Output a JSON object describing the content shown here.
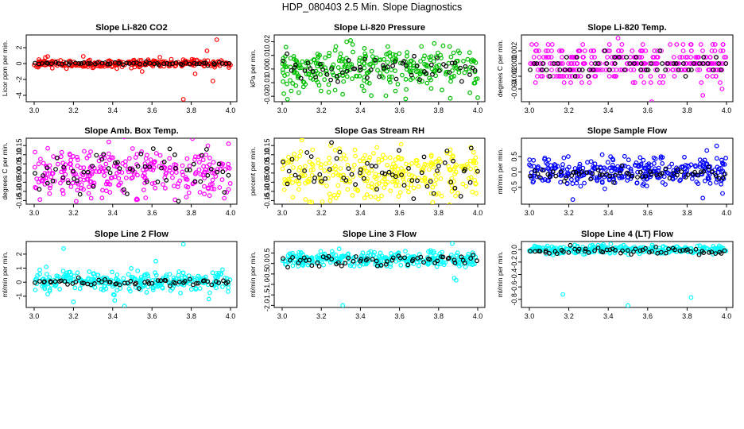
{
  "figure_title": "HDP_080403  2.5 Min. Slope Diagnostics",
  "chart_data": [
    {
      "type": "scatter",
      "title": "Slope Li-820 CO2",
      "ylabel": "Licor ppm per min.",
      "color": "#ff0000",
      "xlim": [
        3.0,
        4.0
      ],
      "ylim": [
        -4.8,
        3.6
      ],
      "xticks": [
        3.0,
        3.2,
        3.4,
        3.6,
        3.8,
        4.0
      ],
      "xtick_labels": [
        "3.0",
        "3.2",
        "3.4",
        "3.6",
        "3.8",
        "4.0"
      ],
      "yticks": [
        -4,
        -2,
        0,
        2
      ],
      "ytick_labels": [
        "-4",
        "-2",
        "0",
        "2"
      ],
      "cloud": {
        "center": 0.0,
        "spread": 0.25,
        "count": 280,
        "seed": 11
      },
      "outliers": {
        "x": [
          3.76,
          3.93,
          3.82,
          3.88,
          3.55,
          3.91,
          3.64,
          3.25
        ],
        "y": [
          -4.5,
          3.0,
          -1.3,
          1.6,
          -1.0,
          -2.2,
          0.8,
          0.9
        ]
      },
      "black": {
        "center": 0.0,
        "spread": 0.08,
        "count": 60,
        "seed": 21
      }
    },
    {
      "type": "scatter",
      "title": "Slope Li-820 Pressure",
      "ylabel": "kPa per min.",
      "color": "#00c000",
      "xlim": [
        3.0,
        4.0
      ],
      "ylim": [
        -0.024,
        0.025
      ],
      "xticks": [
        3.0,
        3.2,
        3.4,
        3.6,
        3.8,
        4.0
      ],
      "xtick_labels": [
        "3.0",
        "3.2",
        "3.4",
        "3.6",
        "3.8",
        "4.0"
      ],
      "yticks": [
        -0.02,
        -0.01,
        0.0,
        0.01,
        0.02
      ],
      "ytick_labels": [
        "-0.02",
        "-0.01",
        "0.00",
        "0.01",
        "0.02"
      ],
      "cloud": {
        "center": 0.0,
        "spread": 0.0085,
        "count": 300,
        "seed": 12
      },
      "outliers": {
        "x": [
          3.35,
          3.33,
          4.0,
          3.36
        ],
        "y": [
          0.021,
          0.02,
          -0.021,
          0.018
        ]
      },
      "black": {
        "center": 0.0,
        "spread": 0.005,
        "count": 60,
        "seed": 22
      }
    },
    {
      "type": "scatter",
      "title": "Slope Li-820 Temp.",
      "ylabel": "degrees C per min.",
      "color": "#ff00ff",
      "xlim": [
        3.0,
        4.0
      ],
      "ylim": [
        -0.006,
        0.0045
      ],
      "xticks": [
        3.0,
        3.2,
        3.4,
        3.6,
        3.8,
        4.0
      ],
      "xtick_labels": [
        "3.0",
        "3.2",
        "3.4",
        "3.6",
        "3.8",
        "4.0"
      ],
      "yticks": [
        -0.004,
        -0.002,
        0.0,
        0.002
      ],
      "ytick_labels": [
        "-0.004",
        "-0.002",
        "0.000",
        "0.002"
      ],
      "levels": [
        -0.004,
        -0.003,
        -0.002,
        -0.001,
        0.0,
        0.001,
        0.002,
        0.003
      ],
      "cloud": {
        "center": 0.0,
        "spread": 0.0015,
        "count": 320,
        "seed": 13
      },
      "outliers": {
        "x": [
          3.62,
          3.45,
          3.88
        ],
        "y": [
          -0.006,
          0.004,
          -0.005
        ]
      },
      "black": {
        "center": 0.0,
        "spread": 0.0008,
        "count": 60,
        "seed": 23
      }
    },
    {
      "type": "scatter",
      "title": "Slope Amb. Box Temp.",
      "ylabel": "degrees C per min.",
      "color": "#ff00ff",
      "xlim": [
        3.0,
        4.0
      ],
      "ylim": [
        -0.17,
        0.19
      ],
      "xticks": [
        3.0,
        3.2,
        3.4,
        3.6,
        3.8,
        4.0
      ],
      "xtick_labels": [
        "3.0",
        "3.2",
        "3.4",
        "3.6",
        "3.8",
        "4.0"
      ],
      "yticks": [
        -0.15,
        -0.1,
        -0.05,
        0.0,
        0.05,
        0.1,
        0.15
      ],
      "ytick_labels": [
        "-0.15",
        "-0.10",
        "-0.05",
        "0.00",
        "0.05",
        "0.10",
        "0.15"
      ],
      "cloud": {
        "center": 0.0,
        "spread": 0.07,
        "count": 300,
        "seed": 14
      },
      "outliers": {
        "x": [
          3.38,
          3.99
        ],
        "y": [
          0.17,
          0.16
        ]
      },
      "black": {
        "center": 0.0,
        "spread": 0.07,
        "count": 60,
        "seed": 24
      }
    },
    {
      "type": "scatter",
      "title": "Slope Gas Stream RH",
      "ylabel": "percent per min.",
      "color": "#ffff00",
      "xlim": [
        3.0,
        4.0
      ],
      "ylim": [
        -0.17,
        0.19
      ],
      "xticks": [
        3.0,
        3.2,
        3.4,
        3.6,
        3.8,
        4.0
      ],
      "xtick_labels": [
        "3.0",
        "3.2",
        "3.4",
        "3.6",
        "3.8",
        "4.0"
      ],
      "yticks": [
        -0.15,
        -0.1,
        -0.05,
        0.0,
        0.05,
        0.1,
        0.15
      ],
      "ytick_labels": [
        "-0.15",
        "-0.10",
        "-0.05",
        "0.00",
        "0.05",
        "0.10",
        "0.15"
      ],
      "cloud": {
        "center": 0.0,
        "spread": 0.07,
        "count": 300,
        "seed": 15
      },
      "outliers": {
        "x": [
          3.1,
          3.77
        ],
        "y": [
          0.18,
          -0.16
        ]
      },
      "black": {
        "center": 0.0,
        "spread": 0.06,
        "count": 60,
        "seed": 25
      }
    },
    {
      "type": "scatter",
      "title": "Slope Sample Flow",
      "ylabel": "ml/min per min.",
      "color": "#0000ff",
      "xlim": [
        3.0,
        4.0
      ],
      "ylim": [
        -1.05,
        1.1
      ],
      "xticks": [
        3.0,
        3.2,
        3.4,
        3.6,
        3.8,
        4.0
      ],
      "xtick_labels": [
        "3.0",
        "3.2",
        "3.4",
        "3.6",
        "3.8",
        "4.0"
      ],
      "yticks": [
        -0.5,
        0.0,
        0.5
      ],
      "ytick_labels": [
        "-0.5",
        "0.0",
        "0.5"
      ],
      "cloud": {
        "center": 0.0,
        "spread": 0.22,
        "count": 320,
        "seed": 16
      },
      "outliers": {
        "x": [
          3.95,
          3.9,
          3.22,
          3.88,
          3.98
        ],
        "y": [
          0.85,
          0.7,
          -0.9,
          -0.85,
          -0.7
        ]
      },
      "black": {
        "center": -0.05,
        "spread": 0.12,
        "count": 60,
        "seed": 26
      }
    },
    {
      "type": "scatter",
      "title": "Slope Line 2 Flow",
      "ylabel": "ml/min per min.",
      "color": "#00ffff",
      "xlim": [
        3.0,
        4.0
      ],
      "ylim": [
        -1.8,
        2.9
      ],
      "xticks": [
        3.0,
        3.2,
        3.4,
        3.6,
        3.8,
        4.0
      ],
      "xtick_labels": [
        "3.0",
        "3.2",
        "3.4",
        "3.6",
        "3.8",
        "4.0"
      ],
      "yticks": [
        -1,
        0,
        1,
        2
      ],
      "ytick_labels": [
        "-1",
        "0",
        "1",
        "2"
      ],
      "cloud": {
        "center": 0.05,
        "spread": 0.35,
        "count": 300,
        "seed": 17
      },
      "outliers": {
        "x": [
          3.76,
          3.15,
          3.46,
          3.41,
          3.62,
          3.89,
          3.2
        ],
        "y": [
          2.7,
          2.4,
          -1.7,
          -1.3,
          1.5,
          -1.2,
          -1.4
        ]
      },
      "black": {
        "center": 0.0,
        "spread": 0.12,
        "count": 60,
        "seed": 27
      }
    },
    {
      "type": "scatter",
      "title": "Slope Line 3 Flow",
      "ylabel": "ml/min per min.",
      "color": "#00ffff",
      "xlim": [
        3.0,
        4.0
      ],
      "ylim": [
        -2.1,
        1.05
      ],
      "xticks": [
        3.0,
        3.2,
        3.4,
        3.6,
        3.8,
        4.0
      ],
      "xtick_labels": [
        "3.0",
        "3.2",
        "3.4",
        "3.6",
        "3.8",
        "4.0"
      ],
      "yticks": [
        -2.0,
        -1.5,
        -1.0,
        -0.5,
        0.0,
        0.5
      ],
      "ytick_labels": [
        "-2.0",
        "-1.5",
        "-1.0",
        "-0.5",
        "0.0",
        "0.5"
      ],
      "cloud": {
        "center": 0.2,
        "spread": 0.18,
        "count": 300,
        "seed": 18
      },
      "outliers": {
        "x": [
          3.31,
          3.88,
          3.89,
          3.87
        ],
        "y": [
          -2.0,
          -0.7,
          -0.8,
          0.95
        ]
      },
      "black": {
        "center": 0.15,
        "spread": 0.14,
        "count": 60,
        "seed": 28
      }
    },
    {
      "type": "scatter",
      "title": "Slope Line 4 (LT) Flow",
      "ylabel": "ml/min per min.",
      "color": "#00ffff",
      "xlim": [
        3.0,
        4.0
      ],
      "ylim": [
        -0.93,
        0.13
      ],
      "xticks": [
        3.0,
        3.2,
        3.4,
        3.6,
        3.8,
        4.0
      ],
      "xtick_labels": [
        "3.0",
        "3.2",
        "3.4",
        "3.6",
        "3.8",
        "4.0"
      ],
      "yticks": [
        -0.8,
        -0.6,
        -0.4,
        -0.2,
        0.0
      ],
      "ytick_labels": [
        "-0.8",
        "-0.6",
        "-0.4",
        "-0.2",
        "0.0"
      ],
      "cloud": {
        "center": 0.0,
        "spread": 0.035,
        "count": 300,
        "seed": 19
      },
      "outliers": {
        "x": [
          3.5,
          3.82,
          3.17
        ],
        "y": [
          -0.9,
          -0.77,
          -0.72
        ]
      },
      "black": {
        "center": -0.02,
        "spread": 0.03,
        "count": 60,
        "seed": 29
      }
    }
  ]
}
